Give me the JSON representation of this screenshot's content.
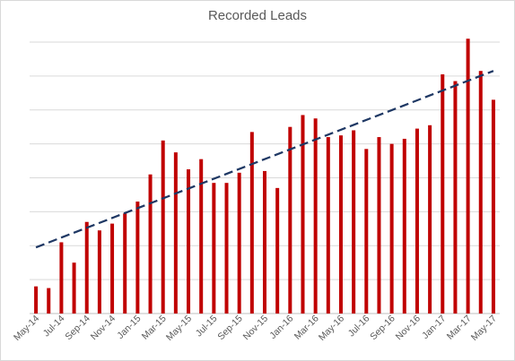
{
  "chart_data": {
    "type": "bar",
    "title": "Recorded Leads",
    "xlabel": "",
    "ylabel": "",
    "y_axis_labels_shown": false,
    "ylim": [
      0,
      8
    ],
    "gridlines": "horizontal",
    "legend": "none",
    "categories": [
      "May-14",
      "Jun-14",
      "Jul-14",
      "Aug-14",
      "Sep-14",
      "Oct-14",
      "Nov-14",
      "Dec-14",
      "Jan-15",
      "Feb-15",
      "Mar-15",
      "Apr-15",
      "May-15",
      "Jun-15",
      "Jul-15",
      "Aug-15",
      "Sep-15",
      "Oct-15",
      "Nov-15",
      "Dec-15",
      "Jan-16",
      "Feb-16",
      "Mar-16",
      "Apr-16",
      "May-16",
      "Jun-16",
      "Jul-16",
      "Aug-16",
      "Sep-16",
      "Oct-16",
      "Nov-16",
      "Dec-16",
      "Jan-17",
      "Feb-17",
      "Mar-17",
      "Apr-17",
      "May-17"
    ],
    "tick_labels": [
      "May-14",
      "Jul-14",
      "Sep-14",
      "Nov-14",
      "Jan-15",
      "Mar-15",
      "May-15",
      "Jul-15",
      "Sep-15",
      "Nov-15",
      "Jan-16",
      "Mar-16",
      "May-16",
      "Jul-16",
      "Sep-16",
      "Nov-16",
      "Jan-17",
      "Mar-17",
      "May-17"
    ],
    "values": [
      0.8,
      0.75,
      2.1,
      1.5,
      2.7,
      2.45,
      2.65,
      2.95,
      3.3,
      4.1,
      5.1,
      4.75,
      4.25,
      4.55,
      3.85,
      3.85,
      4.15,
      5.35,
      4.2,
      3.7,
      5.5,
      5.85,
      5.75,
      5.2,
      5.25,
      5.4,
      4.85,
      5.2,
      5.0,
      5.15,
      5.45,
      5.55,
      7.05,
      6.85,
      8.1,
      7.15,
      6.3
    ],
    "bar_color": "#c00000",
    "trendline": {
      "style": "dashed",
      "color": "#1f3864",
      "start": 1.95,
      "end": 7.15
    }
  }
}
